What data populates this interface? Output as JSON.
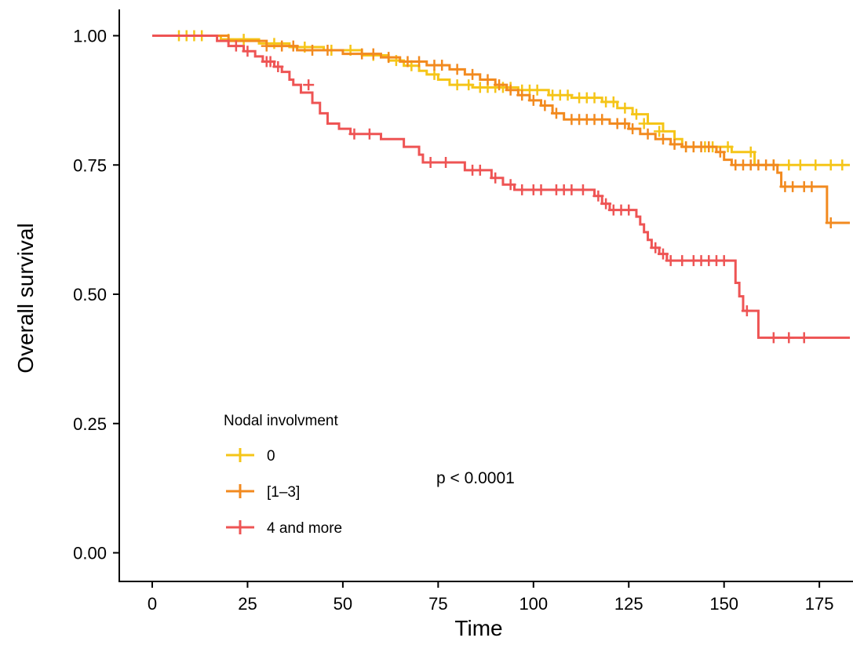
{
  "chart_data": {
    "type": "line",
    "title": "",
    "xlabel": "Time",
    "ylabel": "Overall survival",
    "xlim": [
      -8,
      183
    ],
    "ylim": [
      -0.05,
      1.05
    ],
    "x_ticks": [
      0,
      25,
      50,
      75,
      100,
      125,
      150,
      175
    ],
    "y_ticks": [
      0.0,
      0.25,
      0.5,
      0.75,
      1.0
    ],
    "x_tick_labels": [
      "0",
      "25",
      "50",
      "75",
      "100",
      "125",
      "150",
      "175"
    ],
    "y_tick_labels": [
      "0.00",
      "0.25",
      "0.50",
      "0.75",
      "1.00"
    ],
    "grid": false,
    "legend": {
      "title": "Nodal involvment",
      "position": "bottom-left inside plot"
    },
    "annotation": "p < 0.0001",
    "series": [
      {
        "name": "0",
        "color": "#F5C518",
        "steps": [
          [
            0,
            1.0
          ],
          [
            18,
            0.993
          ],
          [
            28,
            0.985
          ],
          [
            36,
            0.978
          ],
          [
            45,
            0.972
          ],
          [
            55,
            0.962
          ],
          [
            62,
            0.952
          ],
          [
            66,
            0.942
          ],
          [
            70,
            0.932
          ],
          [
            72,
            0.925
          ],
          [
            75,
            0.915
          ],
          [
            78,
            0.905
          ],
          [
            84,
            0.9
          ],
          [
            96,
            0.895
          ],
          [
            104,
            0.885
          ],
          [
            110,
            0.88
          ],
          [
            118,
            0.872
          ],
          [
            122,
            0.86
          ],
          [
            126,
            0.848
          ],
          [
            130,
            0.83
          ],
          [
            134,
            0.815
          ],
          [
            137,
            0.8
          ],
          [
            139,
            0.785
          ],
          [
            152,
            0.775
          ],
          [
            158,
            0.75
          ],
          [
            183,
            0.75
          ]
        ],
        "censors": [
          [
            7,
            1.0
          ],
          [
            9,
            1.0
          ],
          [
            11,
            1.0
          ],
          [
            13,
            1.0
          ],
          [
            20,
            0.993
          ],
          [
            24,
            0.993
          ],
          [
            32,
            0.985
          ],
          [
            40,
            0.978
          ],
          [
            47,
            0.972
          ],
          [
            52,
            0.972
          ],
          [
            58,
            0.962
          ],
          [
            64,
            0.952
          ],
          [
            68,
            0.942
          ],
          [
            74,
            0.925
          ],
          [
            80,
            0.905
          ],
          [
            83,
            0.905
          ],
          [
            86,
            0.9
          ],
          [
            88,
            0.9
          ],
          [
            90,
            0.9
          ],
          [
            92,
            0.9
          ],
          [
            94,
            0.9
          ],
          [
            97,
            0.895
          ],
          [
            99,
            0.895
          ],
          [
            101,
            0.895
          ],
          [
            105,
            0.885
          ],
          [
            107,
            0.885
          ],
          [
            109,
            0.885
          ],
          [
            112,
            0.88
          ],
          [
            114,
            0.88
          ],
          [
            116,
            0.88
          ],
          [
            119,
            0.872
          ],
          [
            121,
            0.872
          ],
          [
            124,
            0.86
          ],
          [
            127,
            0.848
          ],
          [
            129,
            0.83
          ],
          [
            133,
            0.815
          ],
          [
            140,
            0.785
          ],
          [
            142,
            0.785
          ],
          [
            145,
            0.785
          ],
          [
            147,
            0.785
          ],
          [
            151,
            0.785
          ],
          [
            157,
            0.775
          ],
          [
            163,
            0.75
          ],
          [
            167,
            0.75
          ],
          [
            170,
            0.75
          ],
          [
            174,
            0.75
          ],
          [
            178,
            0.75
          ],
          [
            181,
            0.75
          ]
        ]
      },
      {
        "name": "[1–3]",
        "color": "#F28A1F",
        "steps": [
          [
            0,
            1.0
          ],
          [
            20,
            0.99
          ],
          [
            30,
            0.98
          ],
          [
            38,
            0.972
          ],
          [
            50,
            0.965
          ],
          [
            60,
            0.958
          ],
          [
            65,
            0.95
          ],
          [
            72,
            0.943
          ],
          [
            78,
            0.935
          ],
          [
            82,
            0.925
          ],
          [
            86,
            0.915
          ],
          [
            90,
            0.905
          ],
          [
            93,
            0.895
          ],
          [
            96,
            0.885
          ],
          [
            99,
            0.875
          ],
          [
            102,
            0.865
          ],
          [
            105,
            0.85
          ],
          [
            108,
            0.838
          ],
          [
            120,
            0.83
          ],
          [
            125,
            0.82
          ],
          [
            128,
            0.81
          ],
          [
            132,
            0.8
          ],
          [
            136,
            0.79
          ],
          [
            139,
            0.785
          ],
          [
            148,
            0.775
          ],
          [
            150,
            0.76
          ],
          [
            152,
            0.75
          ],
          [
            164,
            0.735
          ],
          [
            165,
            0.708
          ],
          [
            176,
            0.708
          ],
          [
            177,
            0.638
          ],
          [
            183,
            0.638
          ]
        ],
        "censors": [
          [
            30,
            0.98
          ],
          [
            34,
            0.98
          ],
          [
            37,
            0.98
          ],
          [
            42,
            0.972
          ],
          [
            46,
            0.972
          ],
          [
            55,
            0.965
          ],
          [
            58,
            0.965
          ],
          [
            62,
            0.958
          ],
          [
            67,
            0.95
          ],
          [
            70,
            0.95
          ],
          [
            74,
            0.943
          ],
          [
            76,
            0.943
          ],
          [
            80,
            0.935
          ],
          [
            84,
            0.925
          ],
          [
            88,
            0.915
          ],
          [
            91,
            0.905
          ],
          [
            94,
            0.895
          ],
          [
            97,
            0.885
          ],
          [
            100,
            0.875
          ],
          [
            103,
            0.865
          ],
          [
            106,
            0.85
          ],
          [
            110,
            0.838
          ],
          [
            112,
            0.838
          ],
          [
            114,
            0.838
          ],
          [
            116,
            0.838
          ],
          [
            118,
            0.838
          ],
          [
            122,
            0.83
          ],
          [
            124,
            0.83
          ],
          [
            126,
            0.82
          ],
          [
            130,
            0.81
          ],
          [
            134,
            0.8
          ],
          [
            137,
            0.79
          ],
          [
            140,
            0.785
          ],
          [
            142,
            0.785
          ],
          [
            144,
            0.785
          ],
          [
            146,
            0.785
          ],
          [
            149,
            0.775
          ],
          [
            153,
            0.75
          ],
          [
            155,
            0.75
          ],
          [
            157,
            0.75
          ],
          [
            159,
            0.75
          ],
          [
            161,
            0.75
          ],
          [
            163,
            0.75
          ],
          [
            166,
            0.708
          ],
          [
            168,
            0.708
          ],
          [
            171,
            0.708
          ],
          [
            173,
            0.708
          ],
          [
            178,
            0.638
          ]
        ]
      },
      {
        "name": "4 and more",
        "color": "#EE5454",
        "steps": [
          [
            0,
            1.0
          ],
          [
            17,
            0.99
          ],
          [
            20,
            0.98
          ],
          [
            24,
            0.97
          ],
          [
            27,
            0.96
          ],
          [
            29,
            0.95
          ],
          [
            32,
            0.94
          ],
          [
            34,
            0.93
          ],
          [
            36,
            0.915
          ],
          [
            37,
            0.905
          ],
          [
            39,
            0.89
          ],
          [
            42,
            0.87
          ],
          [
            44,
            0.85
          ],
          [
            46,
            0.83
          ],
          [
            49,
            0.82
          ],
          [
            52,
            0.81
          ],
          [
            60,
            0.8
          ],
          [
            66,
            0.785
          ],
          [
            70,
            0.77
          ],
          [
            71,
            0.755
          ],
          [
            82,
            0.74
          ],
          [
            89,
            0.725
          ],
          [
            92,
            0.712
          ],
          [
            95,
            0.702
          ],
          [
            116,
            0.69
          ],
          [
            118,
            0.675
          ],
          [
            120,
            0.663
          ],
          [
            127,
            0.65
          ],
          [
            128,
            0.635
          ],
          [
            129,
            0.62
          ],
          [
            130,
            0.605
          ],
          [
            131,
            0.59
          ],
          [
            133,
            0.578
          ],
          [
            135,
            0.565
          ],
          [
            153,
            0.522
          ],
          [
            154,
            0.496
          ],
          [
            155,
            0.468
          ],
          [
            159,
            0.416
          ],
          [
            183,
            0.416
          ]
        ],
        "censors": [
          [
            22,
            0.98
          ],
          [
            25,
            0.97
          ],
          [
            30,
            0.95
          ],
          [
            31,
            0.95
          ],
          [
            33,
            0.94
          ],
          [
            41,
            0.905
          ],
          [
            53,
            0.81
          ],
          [
            57,
            0.81
          ],
          [
            73,
            0.755
          ],
          [
            77,
            0.755
          ],
          [
            84,
            0.74
          ],
          [
            86,
            0.74
          ],
          [
            90,
            0.725
          ],
          [
            94,
            0.712
          ],
          [
            97,
            0.702
          ],
          [
            100,
            0.702
          ],
          [
            102,
            0.702
          ],
          [
            106,
            0.702
          ],
          [
            108,
            0.702
          ],
          [
            110,
            0.702
          ],
          [
            113,
            0.702
          ],
          [
            117,
            0.69
          ],
          [
            119,
            0.675
          ],
          [
            121,
            0.663
          ],
          [
            123,
            0.663
          ],
          [
            125,
            0.663
          ],
          [
            132,
            0.59
          ],
          [
            134,
            0.578
          ],
          [
            136,
            0.565
          ],
          [
            139,
            0.565
          ],
          [
            142,
            0.565
          ],
          [
            144,
            0.565
          ],
          [
            146,
            0.565
          ],
          [
            148,
            0.565
          ],
          [
            150,
            0.565
          ],
          [
            156,
            0.468
          ],
          [
            163,
            0.416
          ],
          [
            167,
            0.416
          ],
          [
            171,
            0.416
          ]
        ]
      }
    ]
  }
}
